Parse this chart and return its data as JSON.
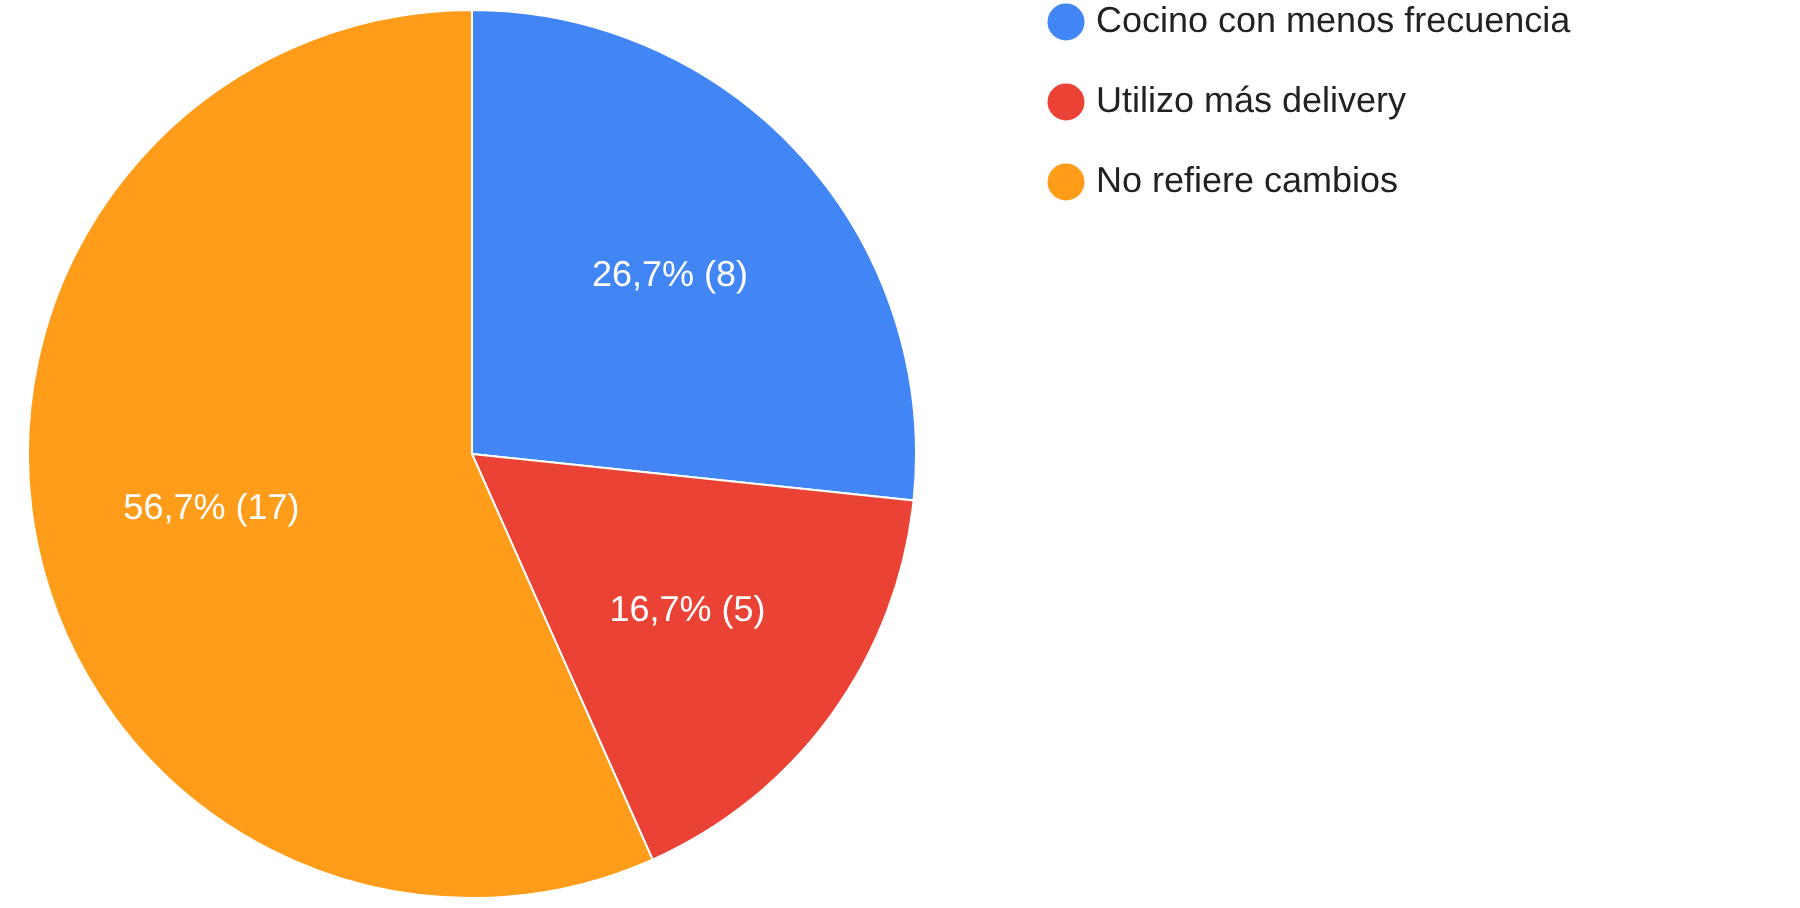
{
  "chart_data": {
    "type": "pie",
    "categories": [
      "Cocino con menos frecuencia",
      "Utilizo más delivery",
      "No refiere cambios"
    ],
    "values": [
      8,
      5,
      17
    ],
    "colors": [
      "#4285f4",
      "#ea4335",
      "#ff9d1b"
    ],
    "value_labels": [
      "26,7% (8)",
      "16,7% (5)",
      "56,7% (17)"
    ],
    "legend": "top right"
  }
}
